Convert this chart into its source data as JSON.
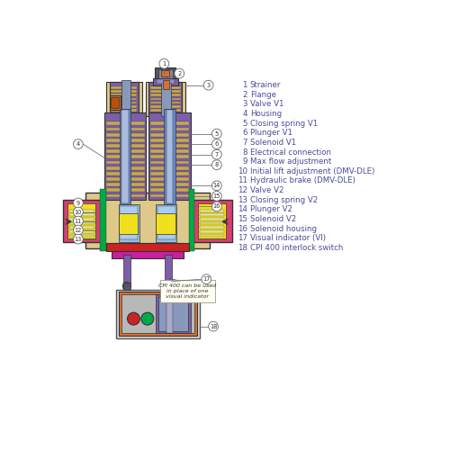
{
  "bg_color": "#ffffff",
  "legend_items": [
    [
      1,
      "Strainer"
    ],
    [
      2,
      "Flange"
    ],
    [
      3,
      "Valve V1"
    ],
    [
      4,
      "Housing"
    ],
    [
      5,
      "Closing spring V1"
    ],
    [
      6,
      "Plunger V1"
    ],
    [
      7,
      "Solenoid V1"
    ],
    [
      8,
      "Electrical connection"
    ],
    [
      9,
      "Max flow adjustment"
    ],
    [
      10,
      "Initial lift adjustment (DMV-DLE)"
    ],
    [
      11,
      "Hydraulic brake (DMV-DLE)"
    ],
    [
      12,
      "Valve V2"
    ],
    [
      13,
      "Closing spring V2"
    ],
    [
      14,
      "Plunger V2"
    ],
    [
      15,
      "Solenoid V2"
    ],
    [
      16,
      "Solenoid housing"
    ],
    [
      17,
      "Visual indicator (VI)"
    ],
    [
      18,
      "CPI 400 interlock switch"
    ]
  ],
  "legend_num_color": "#4a4a9a",
  "legend_text_color": "#4a4a9a",
  "note_text": "CPI 400 can be used\nin place of one\nvisual indicator",
  "colors": {
    "purple": "#7b5fa8",
    "blue_gray": "#8899bb",
    "yellow": "#f0e020",
    "tan": "#dfc98a",
    "pink": "#d84070",
    "orange": "#d87030",
    "red": "#cc2222",
    "green": "#00aa44",
    "magenta": "#c820a0",
    "beige": "#c8a850",
    "dark_gray": "#555566",
    "gray": "#999999",
    "light_gray": "#cccccc",
    "blue": "#6688cc",
    "dark": "#333344",
    "cream": "#f0e8c0",
    "light_purple": "#9988cc",
    "dark_red": "#aa1111"
  }
}
